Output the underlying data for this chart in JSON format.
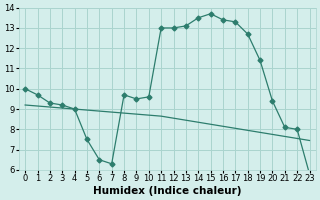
{
  "xlabel": "Humidex (Indice chaleur)",
  "ylabel": "",
  "x": [
    0,
    1,
    2,
    3,
    4,
    5,
    6,
    7,
    8,
    9,
    10,
    11,
    12,
    13,
    14,
    15,
    16,
    17,
    18,
    19,
    20,
    21,
    22,
    23
  ],
  "y_curve": [
    10.0,
    9.7,
    9.3,
    9.2,
    9.0,
    7.5,
    6.5,
    6.3,
    9.7,
    9.5,
    9.6,
    13.0,
    13.0,
    13.1,
    13.5,
    13.7,
    13.4,
    13.3,
    12.7,
    11.4,
    9.4,
    8.1,
    8.0,
    5.8
  ],
  "y_line2": [
    9.2,
    9.15,
    9.1,
    9.05,
    9.0,
    8.95,
    8.9,
    8.85,
    8.8,
    8.75,
    8.7,
    8.65,
    8.55,
    8.45,
    8.35,
    8.25,
    8.15,
    8.05,
    7.95,
    7.85,
    7.75,
    7.65,
    7.55,
    7.45
  ],
  "line_color": "#2d7d6d",
  "bg_color": "#d4eeeb",
  "grid_color": "#aad4ce",
  "ylim": [
    6,
    14
  ],
  "xlim": [
    -0.5,
    23.5
  ],
  "yticks": [
    6,
    7,
    8,
    9,
    10,
    11,
    12,
    13,
    14
  ],
  "xticks": [
    0,
    1,
    2,
    3,
    4,
    5,
    6,
    7,
    8,
    9,
    10,
    11,
    12,
    13,
    14,
    15,
    16,
    17,
    18,
    19,
    20,
    21,
    22,
    23
  ],
  "tick_fontsize": 6,
  "label_fontsize": 7.5,
  "marker": "D",
  "marker_size": 2.5
}
